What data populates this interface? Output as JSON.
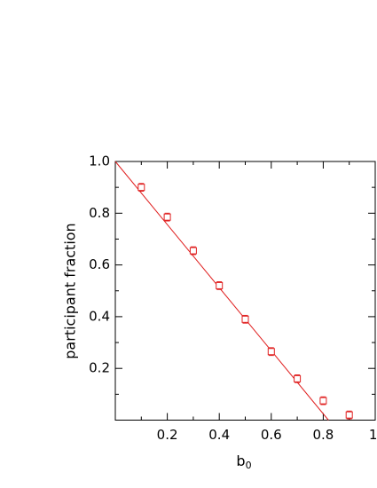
{
  "chart_data": {
    "type": "scatter",
    "x_label": {
      "base": "b",
      "sub": "0"
    },
    "y_label": "participant fraction",
    "x": [
      0.1,
      0.2,
      0.3,
      0.4,
      0.5,
      0.6,
      0.7,
      0.8,
      0.9
    ],
    "values": [
      0.9,
      0.785,
      0.655,
      0.52,
      0.39,
      0.265,
      0.16,
      0.075,
      0.02
    ],
    "errors": [
      0.015,
      0.015,
      0.015,
      0.015,
      0.015,
      0.015,
      0.015,
      0.015,
      0.015
    ],
    "color": "#e02020",
    "fit_line": {
      "x": [
        0,
        0.82
      ],
      "y": [
        1,
        0
      ],
      "color": "#e02020"
    },
    "xlim": [
      0,
      1
    ],
    "ylim": [
      0,
      1
    ],
    "xticks": [
      0.2,
      0.4,
      0.6,
      0.8,
      {
        "value": 1,
        "label": "1."
      }
    ],
    "yticks": [
      0.2,
      0.4,
      0.6,
      0.8,
      {
        "value": 1,
        "label": "1.0"
      }
    ],
    "xminorticks": [
      0.1,
      0.3,
      0.5,
      0.7,
      0.9
    ],
    "yminorticks": [
      0.1,
      0.3,
      0.5,
      0.7,
      0.9
    ]
  }
}
